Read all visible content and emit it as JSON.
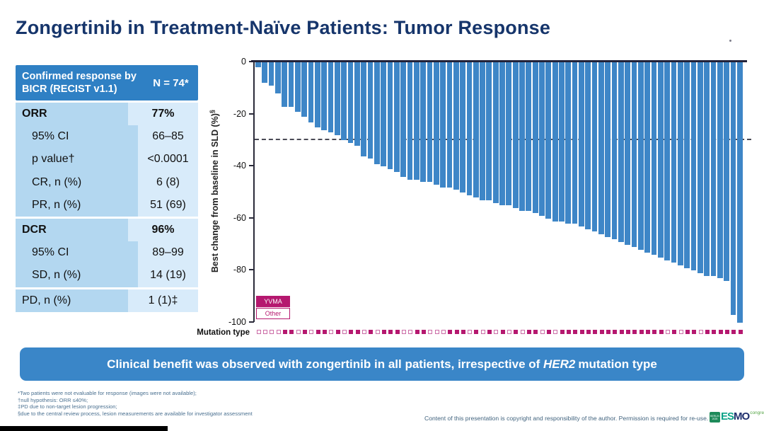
{
  "title": "Zongertinib in Treatment-Naïve Patients: Tumor Response",
  "table": {
    "header_label": "Confirmed response by BICR (RECIST v1.1)",
    "header_value": "N = 74*",
    "rows": [
      {
        "label": "ORR",
        "value": "77%",
        "bold": true,
        "indent": false,
        "section_start": false
      },
      {
        "label": "95% CI",
        "value": "66–85",
        "bold": false,
        "indent": true,
        "section_start": false
      },
      {
        "label": "p value†",
        "value": "<0.0001",
        "bold": false,
        "indent": true,
        "section_start": false
      },
      {
        "label": "CR, n (%)",
        "value": "6 (8)",
        "bold": false,
        "indent": true,
        "section_start": false
      },
      {
        "label": "PR, n (%)",
        "value": "51 (69)",
        "bold": false,
        "indent": true,
        "section_start": false
      },
      {
        "label": "DCR",
        "value": "96%",
        "bold": true,
        "indent": false,
        "section_start": true
      },
      {
        "label": "95% CI",
        "value": "89–99",
        "bold": false,
        "indent": true,
        "section_start": false
      },
      {
        "label": "SD, n (%)",
        "value": "14 (19)",
        "bold": false,
        "indent": true,
        "section_start": false
      },
      {
        "label": "PD, n (%)",
        "value": "1 (1)‡",
        "bold": false,
        "indent": false,
        "section_start": true
      }
    ]
  },
  "chart_data": {
    "type": "bar",
    "title": "",
    "xlabel": "",
    "ylabel": "Best change from baseline in SLD (%)",
    "ylabel_sup": "§",
    "ylim": [
      -100,
      0
    ],
    "yticks": [
      0,
      -20,
      -40,
      -60,
      -80,
      -100
    ],
    "reference_line": -30,
    "grid": false,
    "legend_position": "lower-left",
    "legend": [
      {
        "label": "YVMA",
        "fill": "#b5186f"
      },
      {
        "label": "Other",
        "fill": "#ffffff"
      }
    ],
    "values": [
      -2,
      -8,
      -9,
      -12,
      -17,
      -17,
      -19,
      -21,
      -23,
      -25,
      -26,
      -27,
      -28,
      -30,
      -31,
      -32,
      -36,
      -37,
      -39,
      -40,
      -41,
      -42,
      -44,
      -45,
      -45,
      -46,
      -46,
      -47,
      -48,
      -48,
      -49,
      -50,
      -51,
      -52,
      -53,
      -53,
      -54,
      -55,
      -55,
      -56,
      -57,
      -57,
      -58,
      -59,
      -60,
      -61,
      -61,
      -62,
      -62,
      -63,
      -64,
      -65,
      -66,
      -67,
      -68,
      -69,
      -70,
      -71,
      -72,
      -73,
      -74,
      -75,
      -76,
      -77,
      -78,
      -79,
      -80,
      -81,
      -82,
      -82,
      -83,
      -84,
      -97,
      -100
    ],
    "mutation_yvma": [
      0,
      0,
      0,
      0,
      1,
      1,
      0,
      1,
      0,
      1,
      1,
      0,
      1,
      0,
      1,
      1,
      0,
      1,
      0,
      1,
      1,
      1,
      0,
      0,
      1,
      1,
      0,
      0,
      0,
      1,
      1,
      1,
      0,
      1,
      0,
      1,
      0,
      1,
      0,
      1,
      0,
      1,
      1,
      0,
      1,
      0,
      1,
      1,
      1,
      1,
      1,
      1,
      1,
      1,
      1,
      1,
      1,
      1,
      1,
      1,
      1,
      1,
      0,
      1,
      0,
      1,
      1,
      0,
      1,
      1,
      1,
      1,
      1,
      1
    ]
  },
  "mutation_row_label": "Mutation type",
  "banner": {
    "text_before": "Clinical benefit was observed with zongertinib in all patients, irrespective of",
    "gene": "HER2",
    "text_after": "mutation type"
  },
  "footnotes": [
    "*Two patients were not evaluable for response (images were not available);",
    "†null hypothesis: ORR ≤40%;",
    "‡PD due to non-target lesion progression;",
    "§due to the central review process, lesion measurements are available for investigator assessment"
  ],
  "copyright": "Content of this presentation is copyright and responsibility of the author. Permission is required for re-use.",
  "logo": {
    "badge": "BERLIN 2025",
    "name_left": "ES",
    "name_right": "MO",
    "suffix": "congress"
  },
  "colors": {
    "navy": "#16356b",
    "table_header_bg": "#2f80c4",
    "table_left_bg": "#b3d7f0",
    "table_right_bg": "#d8ebfa",
    "bar_blue": "#3e86c7",
    "magenta": "#b5186f",
    "banner_bg": "#3a86c8"
  }
}
